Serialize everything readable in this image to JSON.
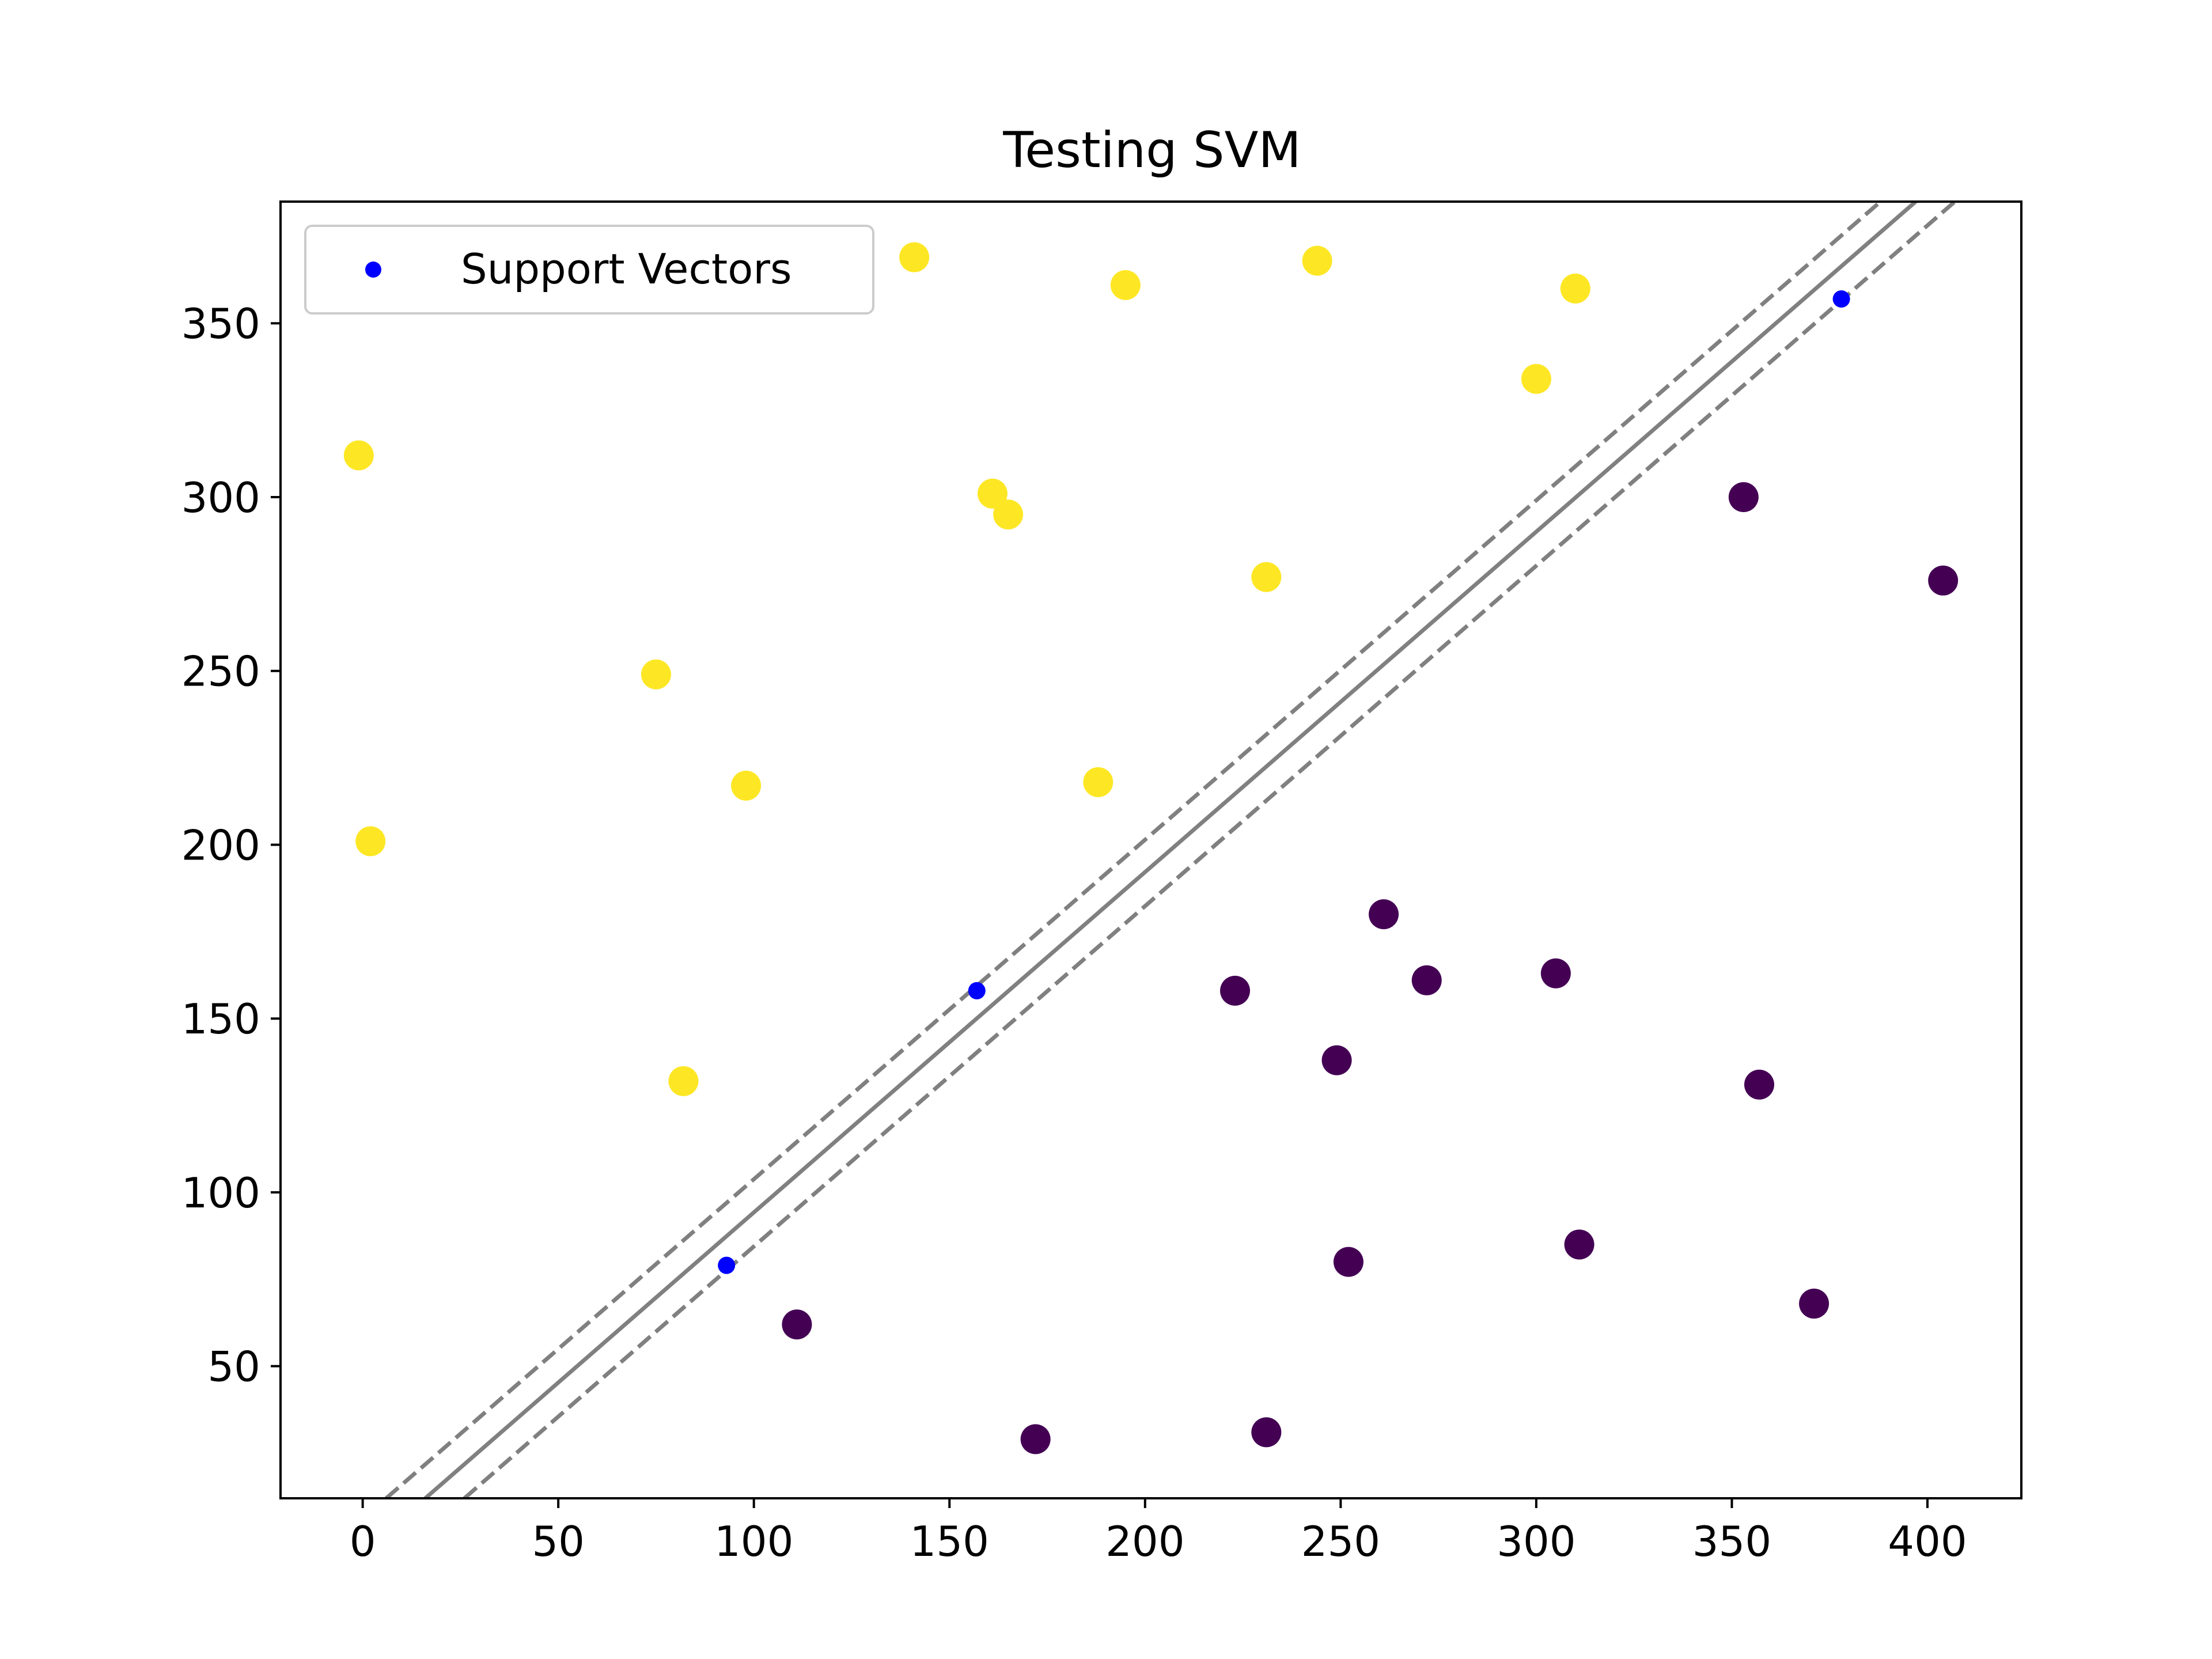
{
  "chart_data": {
    "type": "scatter",
    "title": "Testing SVM",
    "xlabel": "",
    "ylabel": "",
    "xlim": [
      -21,
      424
    ],
    "ylim": [
      12,
      385
    ],
    "xticks": [
      0,
      50,
      100,
      150,
      200,
      250,
      300,
      350,
      400
    ],
    "yticks": [
      50,
      100,
      150,
      200,
      250,
      300,
      350
    ],
    "grid": false,
    "legend": {
      "position": "top-left",
      "entries": [
        "Support Vectors"
      ]
    },
    "colors": {
      "class_a": "#fde725",
      "class_b": "#440154",
      "support_vectors": "#0000ff",
      "boundary": "#808080",
      "axes": "#000000",
      "legend_border": "#cccccc"
    },
    "series": [
      {
        "color": "#fde725",
        "points": [
          [
            -1,
            312
          ],
          [
            2,
            201
          ],
          [
            75,
            249
          ],
          [
            82,
            132
          ],
          [
            98,
            217
          ],
          [
            141,
            369
          ],
          [
            161,
            301
          ],
          [
            165,
            295
          ],
          [
            188,
            218
          ],
          [
            195,
            361
          ],
          [
            231,
            277
          ],
          [
            244,
            368
          ],
          [
            300,
            334
          ],
          [
            310,
            360
          ]
        ]
      },
      {
        "color": "#440154",
        "points": [
          [
            111,
            62
          ],
          [
            172,
            29
          ],
          [
            223,
            158
          ],
          [
            231,
            31
          ],
          [
            249,
            138
          ],
          [
            252,
            80
          ],
          [
            261,
            180
          ],
          [
            272,
            161
          ],
          [
            305,
            163
          ],
          [
            311,
            85
          ],
          [
            353,
            300
          ],
          [
            357,
            131
          ],
          [
            371,
            68
          ],
          [
            404,
            276
          ]
        ]
      },
      {
        "name": "Support Vectors",
        "color": "#0000ff",
        "points": [
          [
            93,
            79
          ],
          [
            157,
            158
          ],
          [
            378,
            357
          ]
        ]
      }
    ],
    "decision_boundary": {
      "style": "solid",
      "color": "#808080",
      "points": [
        [
          16,
          12
        ],
        [
          397,
          385
        ]
      ]
    },
    "margins": [
      {
        "style": "dashed",
        "color": "#808080",
        "points": [
          [
            6,
            12
          ],
          [
            388,
            385
          ]
        ]
      },
      {
        "style": "dashed",
        "color": "#808080",
        "points": [
          [
            26,
            12
          ],
          [
            407,
            385
          ]
        ]
      }
    ]
  }
}
